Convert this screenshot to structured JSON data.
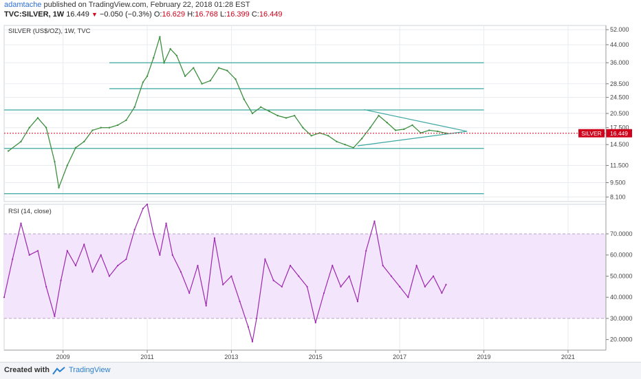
{
  "header": {
    "user": "adamtache",
    "published": "published on TradingView.com, February 22, 2018 01:28 EST",
    "symbol": "TVC:SILVER, 1W",
    "last": "16.449",
    "change": "−0.050 (−0.3%)",
    "o_label": "O:",
    "o_val": "16.629",
    "h_label": "H:",
    "h_val": "16.768",
    "l_label": "L:",
    "l_val": "16.399",
    "c_label": "C:",
    "c_val": "16.449"
  },
  "footer": {
    "created_with": "Created with",
    "brand": "TradingView"
  },
  "colors": {
    "price": "#3d8f3f",
    "down": "#d0021b",
    "rsi": "#9c27b0",
    "rsi_band": "#f3e5fb",
    "lines": "#3aa7a0",
    "grid": "#e8ebef"
  },
  "chart_data": [
    {
      "type": "line",
      "title": "SILVER (US$/OZ), 1W, TVC",
      "price_label": {
        "name": "SILVER",
        "value": "16.449"
      },
      "yaxis_scale": "log",
      "y_ticks": [
        "52.000",
        "44.000",
        "36.000",
        "28.500",
        "24.500",
        "20.500",
        "17.500",
        "14.500",
        "11.500",
        "9.500",
        "8.100"
      ],
      "x_ticks": [
        "2009",
        "2011",
        "2013",
        "2015",
        "2017",
        "2019",
        "2021"
      ],
      "x": [
        2007.7,
        2008.0,
        2008.2,
        2008.4,
        2008.6,
        2008.8,
        2008.9,
        2009.1,
        2009.3,
        2009.5,
        2009.7,
        2009.9,
        2010.1,
        2010.3,
        2010.5,
        2010.7,
        2010.9,
        2011.0,
        2011.15,
        2011.3,
        2011.4,
        2011.55,
        2011.7,
        2011.9,
        2012.1,
        2012.3,
        2012.5,
        2012.7,
        2012.9,
        2013.1,
        2013.3,
        2013.5,
        2013.7,
        2013.9,
        2014.1,
        2014.3,
        2014.5,
        2014.7,
        2014.9,
        2015.1,
        2015.3,
        2015.5,
        2015.7,
        2015.9,
        2016.1,
        2016.3,
        2016.5,
        2016.7,
        2016.9,
        2017.1,
        2017.3,
        2017.5,
        2017.7,
        2017.9,
        2018.1
      ],
      "values": [
        13.5,
        15.0,
        17.5,
        19.5,
        17.5,
        12.0,
        9.0,
        11.5,
        14.0,
        15.0,
        17.0,
        17.5,
        17.5,
        18.0,
        19.0,
        22.0,
        29.0,
        31.0,
        38.0,
        48.0,
        36.0,
        42.0,
        39.0,
        31.0,
        34.0,
        28.5,
        29.5,
        34.0,
        33.0,
        30.0,
        24.0,
        20.5,
        22.0,
        21.0,
        20.0,
        19.5,
        20.0,
        17.5,
        16.0,
        16.5,
        16.0,
        15.0,
        14.5,
        14.0,
        15.5,
        17.5,
        20.0,
        18.5,
        17.0,
        17.2,
        18.0,
        16.5,
        17.0,
        16.8,
        16.45
      ],
      "horizontal_lines": [
        36.0,
        27.0,
        21.3,
        13.9,
        8.4
      ],
      "triangle": {
        "upper": [
          [
            2016.15,
            21.4
          ],
          [
            2018.6,
            16.8
          ]
        ],
        "lower": [
          [
            2016.0,
            14.3
          ],
          [
            2018.6,
            16.8
          ]
        ]
      }
    },
    {
      "type": "line",
      "title": "RSI (14, close)",
      "y_ticks": [
        "70.0000",
        "60.0000",
        "50.0000",
        "40.0000",
        "30.0000",
        "20.0000"
      ],
      "band": [
        30,
        70
      ],
      "x": [
        2007.6,
        2007.8,
        2008.0,
        2008.2,
        2008.4,
        2008.6,
        2008.8,
        2008.95,
        2009.1,
        2009.3,
        2009.5,
        2009.7,
        2009.9,
        2010.1,
        2010.3,
        2010.5,
        2010.7,
        2010.9,
        2011.0,
        2011.15,
        2011.3,
        2011.45,
        2011.6,
        2011.8,
        2012.0,
        2012.2,
        2012.4,
        2012.6,
        2012.8,
        2013.0,
        2013.2,
        2013.4,
        2013.5,
        2013.6,
        2013.8,
        2014.0,
        2014.2,
        2014.4,
        2014.6,
        2014.8,
        2015.0,
        2015.2,
        2015.4,
        2015.6,
        2015.8,
        2016.0,
        2016.2,
        2016.4,
        2016.6,
        2016.8,
        2017.0,
        2017.2,
        2017.4,
        2017.6,
        2017.8,
        2018.0,
        2018.1
      ],
      "values": [
        40,
        58,
        75,
        60,
        62,
        45,
        31,
        48,
        62,
        55,
        65,
        52,
        60,
        50,
        55,
        58,
        72,
        82,
        84,
        70,
        60,
        75,
        60,
        52,
        42,
        55,
        36,
        68,
        46,
        50,
        38,
        26,
        19,
        30,
        58,
        48,
        45,
        55,
        50,
        45,
        28,
        42,
        55,
        45,
        50,
        38,
        62,
        76,
        55,
        50,
        45,
        40,
        55,
        45,
        50,
        42,
        46
      ]
    }
  ]
}
